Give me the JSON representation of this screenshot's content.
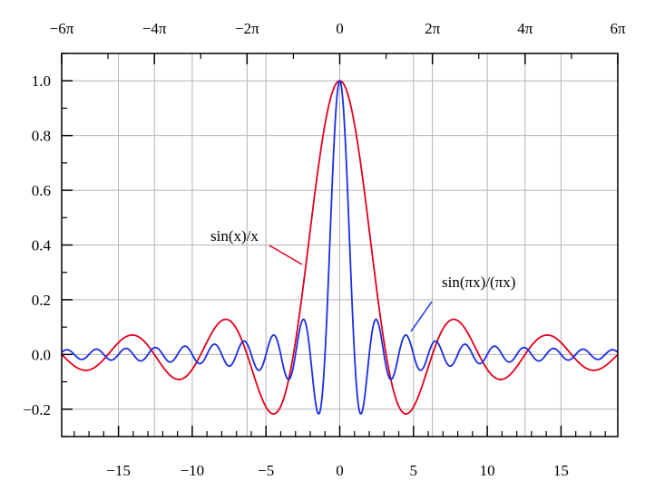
{
  "chart_data": {
    "type": "line",
    "title": "",
    "xlabel": "",
    "ylabel": "",
    "xlim": [
      -18.85,
      18.85
    ],
    "ylim": [
      -0.3,
      1.1
    ],
    "grid": true,
    "legend": "none",
    "x_ticks": [
      -15,
      -10,
      -5,
      0,
      5,
      10,
      15
    ],
    "x_tick_labels": [
      "−15",
      "−10",
      "−5",
      "0",
      "5",
      "10",
      "15"
    ],
    "y_ticks": [
      -0.2,
      0.0,
      0.2,
      0.4,
      0.6,
      0.8,
      1.0
    ],
    "y_tick_labels": [
      "−0.2",
      "0.0",
      "0.2",
      "0.4",
      "0.6",
      "0.8",
      "1.0"
    ],
    "top_ticks": [
      -18.8496,
      -12.5664,
      -6.2832,
      0,
      6.2832,
      12.5664,
      18.8496
    ],
    "top_tick_labels": [
      "−6π",
      "−4π",
      "−2π",
      "0",
      "2π",
      "4π",
      "6π"
    ],
    "series": [
      {
        "name": "sin(x)/x",
        "color": "#e3001b",
        "x": [
          -18.85,
          -17.28,
          -15.71,
          -14.14,
          -12.57,
          -10.99,
          -9.42,
          -7.85,
          -6.28,
          -4.71,
          -3.14,
          -1.57,
          0,
          1.57,
          3.14,
          4.71,
          6.28,
          7.85,
          9.42,
          10.99,
          12.57,
          14.14,
          15.71,
          17.28,
          18.85
        ],
        "y": [
          0.0,
          -0.058,
          0.0,
          0.071,
          0.0,
          -0.091,
          0.0,
          0.127,
          0.0,
          -0.212,
          0.0,
          0.637,
          1.0,
          0.637,
          0.0,
          -0.212,
          0.0,
          0.127,
          0.0,
          -0.091,
          0.0,
          0.071,
          0.0,
          -0.058,
          0.0
        ]
      },
      {
        "name": "sin(πx)/(πx)",
        "color": "#1a2ee6",
        "x": [
          -18.5,
          -16.5,
          -14.5,
          -12.5,
          -10.5,
          -8.5,
          -6.5,
          -4.5,
          -3.5,
          -2.5,
          -1.5,
          -0.5,
          0,
          0.5,
          1.5,
          2.5,
          3.5,
          4.5,
          6.5,
          8.5,
          10.5,
          12.5,
          14.5,
          16.5,
          18.5
        ],
        "y": [
          0.017,
          0.019,
          0.022,
          0.025,
          0.03,
          0.037,
          0.049,
          0.071,
          -0.091,
          0.127,
          -0.212,
          0.637,
          1.0,
          0.637,
          -0.212,
          0.127,
          -0.091,
          0.071,
          0.049,
          0.037,
          0.03,
          0.025,
          0.022,
          0.019,
          0.017
        ]
      }
    ],
    "annotations": [
      {
        "text": "sin(x)/x",
        "series": "sin(x)/x"
      },
      {
        "text": "sin(πx)/(πx)",
        "series": "sin(πx)/(πx)"
      }
    ]
  }
}
